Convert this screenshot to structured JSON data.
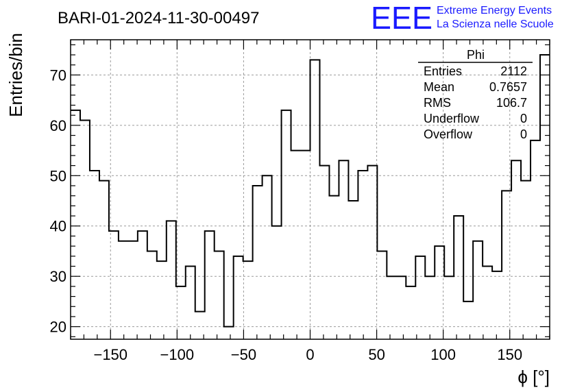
{
  "title": "BARI-01-2024-11-30-00497",
  "logo": {
    "mark": "EEE",
    "line1": "Extreme Energy Events",
    "line2": "La Scienza nelle Scuole",
    "color": "#1a1aff"
  },
  "stats_box": {
    "name": "Phi",
    "rows": [
      {
        "label": "Entries",
        "value": "2112"
      },
      {
        "label": "Mean",
        "value": "0.7657"
      },
      {
        "label": "RMS",
        "value": "106.7"
      },
      {
        "label": "Underflow",
        "value": "0"
      },
      {
        "label": "Overflow",
        "value": "0"
      }
    ]
  },
  "chart_data": {
    "type": "histogram",
    "xlabel": "ϕ [°]",
    "ylabel": "Entries/bin",
    "xlim": [
      -180,
      180
    ],
    "ylim": [
      17.5,
      77
    ],
    "bin_width": 7.2,
    "x_ticks": [
      -150,
      -100,
      -50,
      0,
      50,
      100,
      150
    ],
    "x_tick_labels": [
      "−150",
      "−100",
      "−50",
      "0",
      "50",
      "100",
      "150"
    ],
    "y_ticks": [
      20,
      30,
      40,
      50,
      60,
      70
    ],
    "grid": true,
    "values": [
      63,
      61,
      51,
      49,
      39,
      37,
      37,
      39,
      35,
      33,
      41,
      28,
      32,
      23,
      39,
      35,
      20,
      34,
      33,
      48,
      50,
      40,
      63,
      55,
      55,
      73,
      52,
      46,
      53,
      45,
      51,
      52,
      35,
      30,
      30,
      28,
      34,
      30,
      36,
      30,
      42,
      25,
      37,
      32,
      31,
      47,
      53,
      49,
      57,
      74
    ]
  }
}
